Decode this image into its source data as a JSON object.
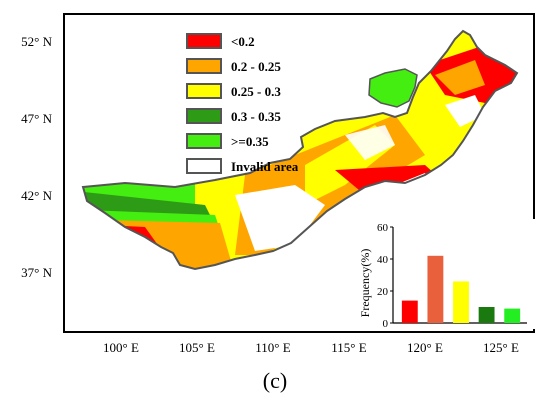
{
  "map": {
    "lat_labels": [
      "52° N",
      "47° N",
      "42° N",
      "37° N"
    ],
    "lon_labels": [
      "100° E",
      "105° E",
      "110° E",
      "115° E",
      "120° E",
      "125° E"
    ],
    "panel_label": "(c)"
  },
  "legend": {
    "items": [
      {
        "label": "<0.2",
        "color": "#ff0000"
      },
      {
        "label": "0.2 - 0.25",
        "color": "#ffa500"
      },
      {
        "label": "0.25 - 0.3",
        "color": "#ffff00"
      },
      {
        "label": "0.3 - 0.35",
        "color": "#2e9b16"
      },
      {
        "label": ">=0.35",
        "color": "#44ee10"
      },
      {
        "label": "Invalid area",
        "color": "#ffffff"
      }
    ]
  },
  "chart_data": {
    "type": "bar",
    "categories": [
      "<0.2",
      "0.2 - 0.25",
      "0.25 - 0.3",
      "0.3 - 0.35",
      ">=0.35"
    ],
    "values": [
      14,
      42,
      26,
      10,
      9
    ],
    "ylabel": "Frequency(%)",
    "ylim": [
      0,
      60
    ],
    "yticks": [
      "0",
      "20",
      "40",
      "60"
    ],
    "colors": [
      "#ff0000",
      "#e8603c",
      "#ffff00",
      "#1a7a10",
      "#22ee22"
    ]
  }
}
